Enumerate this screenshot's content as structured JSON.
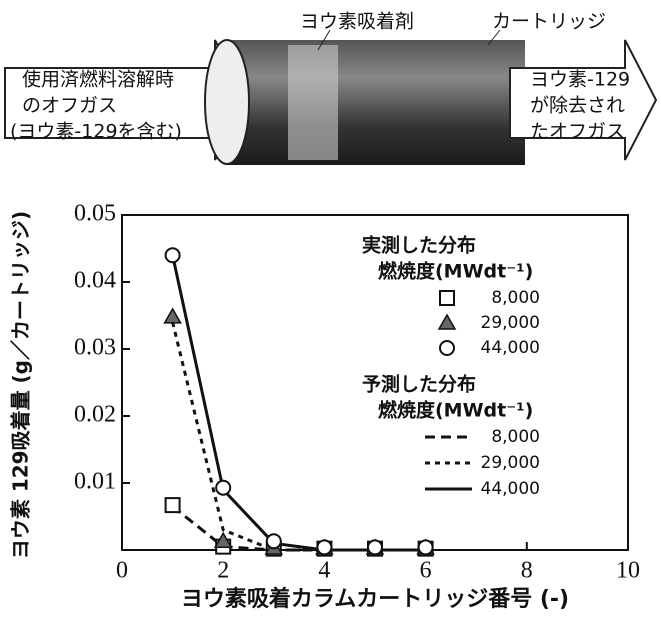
{
  "diagram": {
    "adsorbent_label": "ヨウ素吸着剤",
    "cartridge_label": "カートリッジ",
    "inlet_text": [
      "使用済燃料溶解時",
      "のオフガス",
      "(ヨウ素-129を含む)"
    ],
    "outlet_text": [
      "ヨウ素-129",
      "が除去され",
      "たオフガス"
    ]
  },
  "chart_data": {
    "type": "line",
    "x_label": "ヨウ素吸着カラムカートリッジ番号 (-)",
    "y_label": "ヨウ素 129吸着量 (g／カートリッジ)",
    "measured_legend_title": "実測した分布",
    "predicted_legend_title": "予測した分布",
    "legend_subtitle": "燃焼度(MWdt⁻¹)",
    "x": [
      1,
      2,
      3,
      4,
      5,
      6
    ],
    "series": [
      {
        "name": "8,000",
        "group": "measured",
        "marker": "square",
        "color": "#111",
        "values": [
          0.0067,
          0.0005,
          0.0002,
          0.0002,
          0.0002,
          0.0002
        ]
      },
      {
        "name": "29,000",
        "group": "measured",
        "marker": "triangle",
        "color": "#111",
        "values": [
          0.0348,
          0.0013,
          0.0003,
          0.0003,
          0.0003,
          0.0003
        ]
      },
      {
        "name": "44,000",
        "group": "measured",
        "marker": "circle",
        "color": "#111",
        "values": [
          0.044,
          0.0093,
          0.0013,
          0.0004,
          0.0004,
          0.0004
        ]
      },
      {
        "name": "8,000",
        "group": "predicted",
        "dash": "dashed",
        "color": "#111",
        "values": [
          0.0065,
          0.0005,
          0,
          0,
          0,
          0
        ]
      },
      {
        "name": "29,000",
        "group": "predicted",
        "dash": "dotted",
        "color": "#111",
        "values": [
          0.034,
          0.003,
          0,
          0,
          0,
          0
        ]
      },
      {
        "name": "44,000",
        "group": "predicted",
        "dash": "solid",
        "color": "#111",
        "values": [
          0.044,
          0.009,
          0.001,
          0,
          0,
          0
        ]
      }
    ],
    "xlim": [
      0,
      10
    ],
    "xticks": [
      0,
      2,
      4,
      6,
      8,
      10
    ],
    "ylim": [
      0,
      0.05
    ],
    "yticks": [
      0.01,
      0.02,
      0.03,
      0.04,
      0.05
    ]
  }
}
